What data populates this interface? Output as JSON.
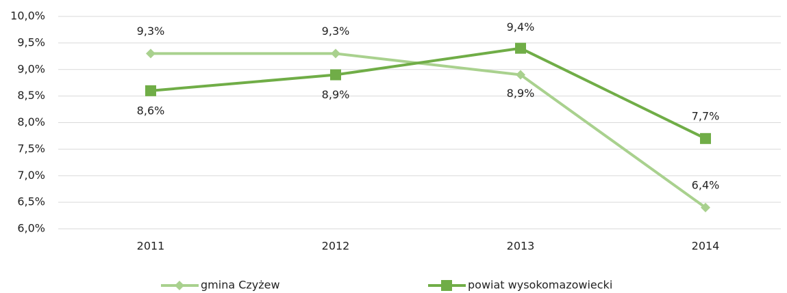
{
  "chart_data": {
    "type": "line",
    "categories": [
      "2011",
      "2012",
      "2013",
      "2014"
    ],
    "series": [
      {
        "name": "gmina Czyżew",
        "color": "#a9d18e",
        "marker": "diamond",
        "values": [
          9.3,
          9.3,
          8.9,
          6.4
        ],
        "value_labels": [
          "9,3%",
          "9,3%",
          "8,9%",
          "6,4%"
        ]
      },
      {
        "name": "powiat wysokomazowiecki",
        "color": "#70ad47",
        "marker": "square",
        "values": [
          8.6,
          8.9,
          9.4,
          7.7
        ],
        "value_labels": [
          "8,6%",
          "8,9%",
          "9,4%",
          "7,7%"
        ]
      }
    ],
    "ylim": [
      6,
      10
    ],
    "yticks": [
      {
        "value": 6,
        "label": "6,0%"
      },
      {
        "value": 6.5,
        "label": "6,5%"
      },
      {
        "value": 7,
        "label": "7,0%"
      },
      {
        "value": 7.5,
        "label": "7,5%"
      },
      {
        "value": 8,
        "label": "8,0%"
      },
      {
        "value": 8.5,
        "label": "8,5%"
      },
      {
        "value": 9,
        "label": "9,0%"
      },
      {
        "value": 9.5,
        "label": "9,5%"
      },
      {
        "value": 10,
        "label": "10,0%"
      }
    ],
    "grid": true,
    "legend": "bottom"
  }
}
